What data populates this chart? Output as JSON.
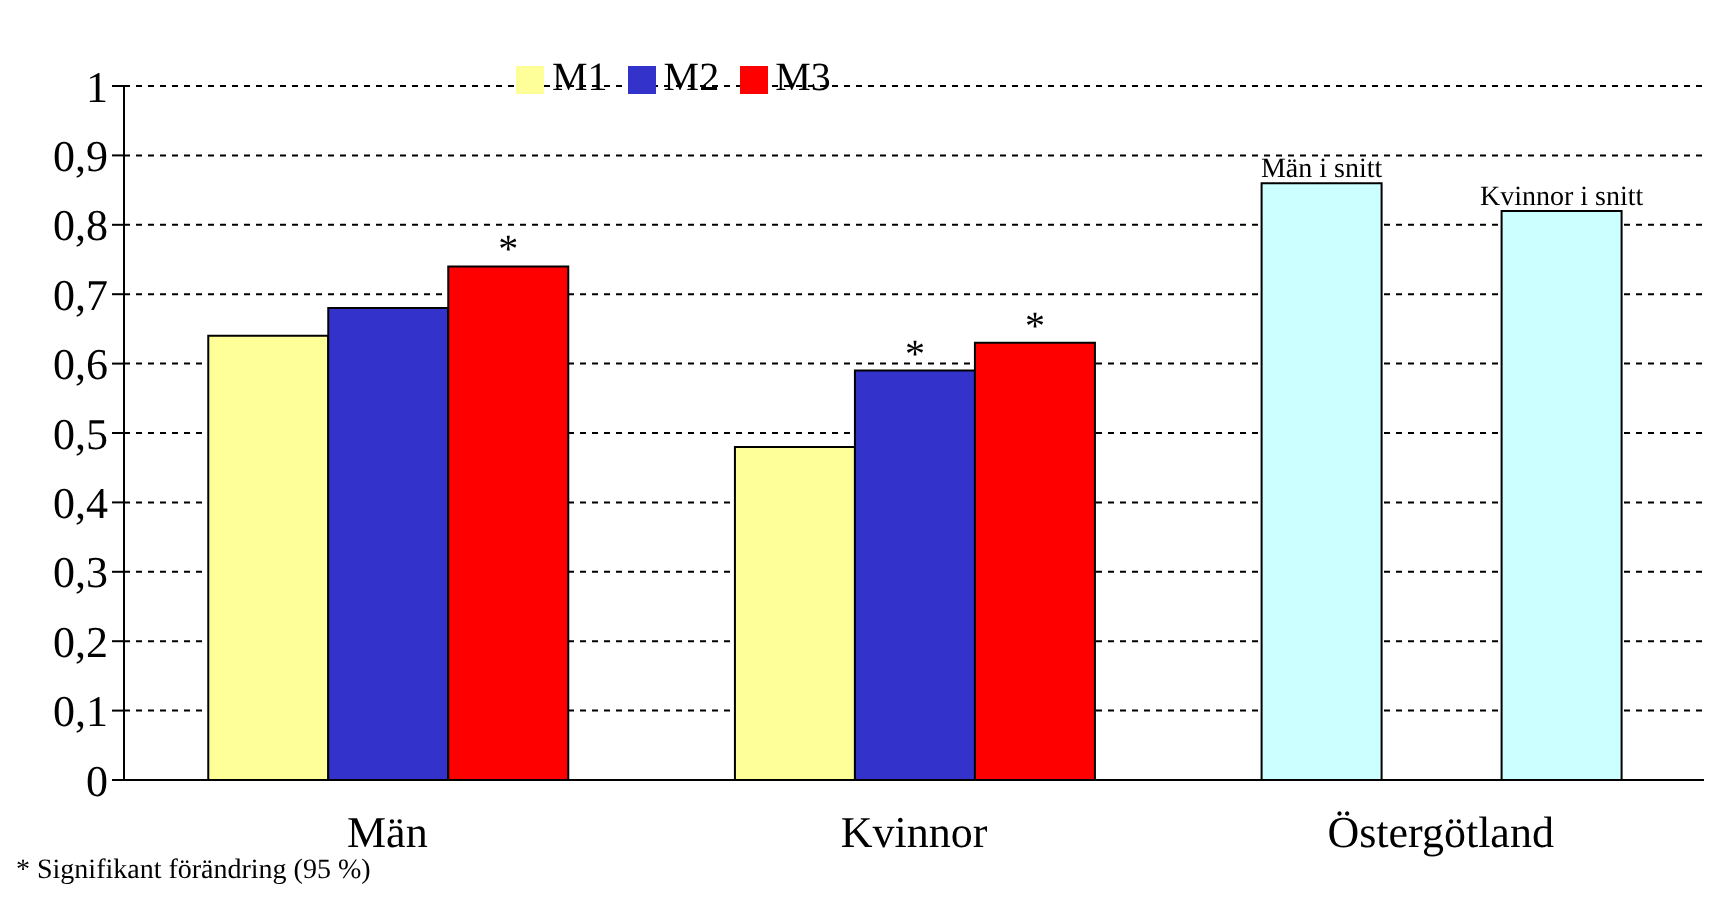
{
  "chart_data": {
    "type": "bar",
    "categories": [
      "Män",
      "Kvinnor",
      "Östergötland"
    ],
    "series": [
      {
        "name": "M1",
        "color": "#ffff99",
        "colors": [
          "#ffff99",
          "#ffff99",
          "#ccffff"
        ],
        "values": [
          0.64,
          0.48,
          0.86
        ],
        "value_labels": [
          null,
          null,
          "Män i snitt"
        ]
      },
      {
        "name": "M2",
        "color": "#3333cc",
        "colors": [
          "#3333cc",
          "#3333cc",
          "#3333cc"
        ],
        "values": [
          0.68,
          0.59,
          null
        ],
        "value_labels": [
          null,
          "*",
          null
        ]
      },
      {
        "name": "M3",
        "color": "#ff0000",
        "colors": [
          "#ff0000",
          "#ff0000",
          "#ccffff"
        ],
        "values": [
          0.74,
          0.63,
          0.82
        ],
        "value_labels": [
          "*",
          "*",
          "Kvinnor i snitt"
        ]
      }
    ],
    "ylim": [
      0,
      1
    ],
    "yticks": [
      {
        "value": 0,
        "label": "0"
      },
      {
        "value": 0.1,
        "label": "0,1"
      },
      {
        "value": 0.2,
        "label": "0,2"
      },
      {
        "value": 0.3,
        "label": "0,3"
      },
      {
        "value": 0.4,
        "label": "0,4"
      },
      {
        "value": 0.5,
        "label": "0,5"
      },
      {
        "value": 0.6,
        "label": "0,6"
      },
      {
        "value": 0.7,
        "label": "0,7"
      },
      {
        "value": 0.8,
        "label": "0,8"
      },
      {
        "value": 0.9,
        "label": "0,9"
      },
      {
        "value": 1,
        "label": "1"
      }
    ],
    "grid": "y",
    "legend": "top left",
    "annotations": [
      "* Signifikant förändring (95 %)"
    ]
  }
}
